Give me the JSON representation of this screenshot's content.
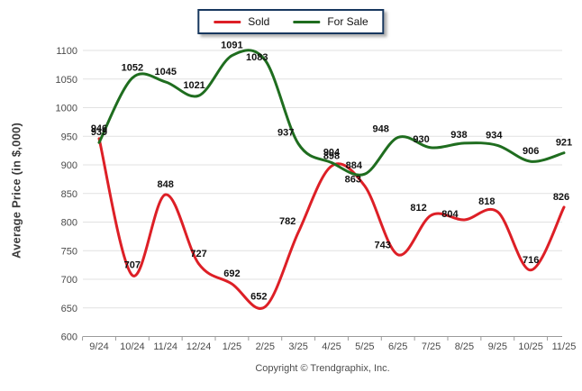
{
  "legend": {
    "border_color": "#17375e",
    "items": [
      {
        "label": "Sold",
        "color": "#dd1f26"
      },
      {
        "label": "For Sale",
        "color": "#1f6d1f"
      }
    ]
  },
  "y_axis": {
    "title": "Average Price (in $,000)",
    "ticks": [
      1100,
      1050,
      1000,
      950,
      900,
      850,
      800,
      750,
      700,
      650,
      600
    ]
  },
  "footer": {
    "copyright": "Copyright © Trendgraphix, Inc."
  },
  "chart_data": {
    "type": "line",
    "title": "",
    "xlabel": "",
    "ylabel": "Average Price (in $,000)",
    "categories": [
      "9/24",
      "10/24",
      "11/24",
      "12/24",
      "1/25",
      "2/25",
      "3/25",
      "4/25",
      "5/25",
      "6/25",
      "7/25",
      "8/25",
      "9/25",
      "10/25",
      "11/25"
    ],
    "series": [
      {
        "name": "Sold",
        "color": "#dd1f26",
        "values": [
          946,
          707,
          848,
          727,
          692,
          652,
          782,
          898,
          863,
          743,
          812,
          804,
          818,
          716,
          826
        ]
      },
      {
        "name": "For Sale",
        "color": "#1f6d1f",
        "values": [
          939,
          1052,
          1045,
          1021,
          1091,
          1083,
          937,
          904,
          884,
          948,
          930,
          938,
          934,
          906,
          921
        ]
      }
    ],
    "ylim": [
      600,
      1100
    ],
    "ytick_step": 50,
    "grid": true,
    "data_labels": true,
    "legend_position": "top-center",
    "grid_color": "#e1e1e1",
    "axis_color": "#9b9b9b",
    "tick_label_color": "#4a4a4a",
    "data_label_color": "#111111"
  }
}
